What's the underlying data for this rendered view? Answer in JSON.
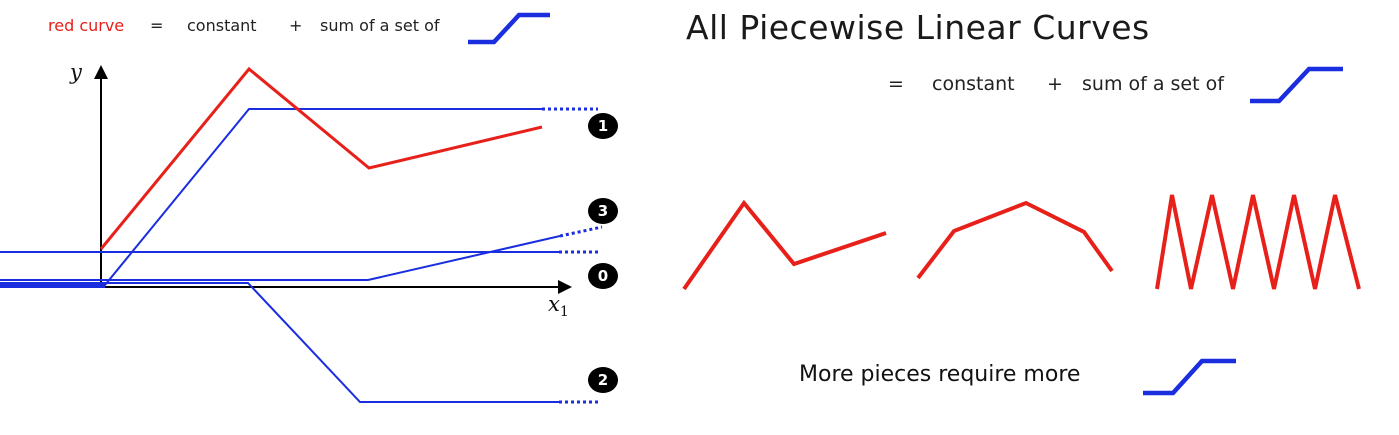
{
  "left_header": {
    "red_curve": "red curve",
    "eq": "=",
    "constant": "constant",
    "plus": "+",
    "sum_text": "sum of a set of"
  },
  "title": "All Piecewise Linear Curves",
  "right_header": {
    "eq": "=",
    "constant": "constant",
    "plus": "+",
    "sum_text": "sum of a set of"
  },
  "axes": {
    "y_label": "y",
    "x_label": "x",
    "x_subscript": "1"
  },
  "badges": [
    "1",
    "3",
    "0",
    "2"
  ],
  "bottom_text": "More pieces require more",
  "colors": {
    "curve": "#e8201a",
    "component": "#1a2ee0",
    "badge": "#000000"
  }
}
